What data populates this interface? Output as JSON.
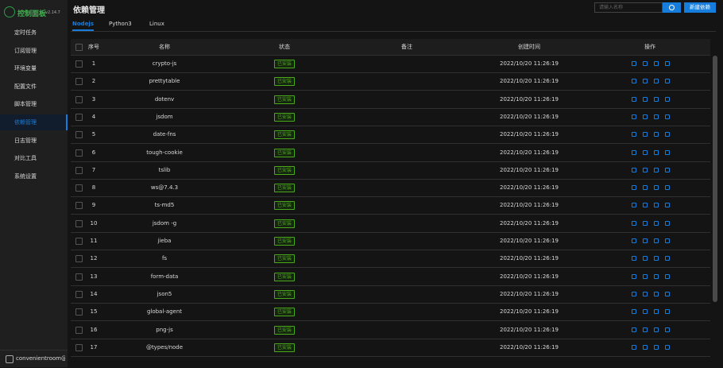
{
  "sidebar": {
    "logo": "控制面板",
    "version": "v2.14.7",
    "menu": [
      "定时任务",
      "订阅管理",
      "环境变量",
      "配置文件",
      "脚本管理",
      "依赖管理",
      "日志管理",
      "对比工具",
      "系统设置"
    ],
    "active": 5,
    "user": "convenientroom@c"
  },
  "header": {
    "title": "依赖管理",
    "search_placeholder": "请输入名称",
    "button": "新建依赖"
  },
  "tabs": {
    "items": [
      "Nodejs",
      "Python3",
      "Linux"
    ],
    "active": 0
  },
  "table": {
    "columns": [
      "序号",
      "名称",
      "状态",
      "备注",
      "创建时间",
      "操作"
    ],
    "rows": [
      {
        "no": "1",
        "name": "crypto-js",
        "status": "已安装",
        "time": "2022/10/20 11:26:19"
      },
      {
        "no": "2",
        "name": "prettytable",
        "status": "已安装",
        "time": "2022/10/20 11:26:19"
      },
      {
        "no": "3",
        "name": "dotenv",
        "status": "已安装",
        "time": "2022/10/20 11:26:19"
      },
      {
        "no": "4",
        "name": "jsdom",
        "status": "已安装",
        "time": "2022/10/20 11:26:19"
      },
      {
        "no": "5",
        "name": "date-fns",
        "status": "已安装",
        "time": "2022/10/20 11:26:19"
      },
      {
        "no": "6",
        "name": "tough-cookie",
        "status": "已安装",
        "time": "2022/10/20 11:26:19"
      },
      {
        "no": "7",
        "name": "tslib",
        "status": "已安装",
        "time": "2022/10/20 11:26:19"
      },
      {
        "no": "8",
        "name": "ws@7.4.3",
        "status": "已安装",
        "time": "2022/10/20 11:26:19"
      },
      {
        "no": "9",
        "name": "ts-md5",
        "status": "已安装",
        "time": "2022/10/20 11:26:19"
      },
      {
        "no": "10",
        "name": "jsdom -g",
        "status": "已安装",
        "time": "2022/10/20 11:26:19"
      },
      {
        "no": "11",
        "name": "jieba",
        "status": "已安装",
        "time": "2022/10/20 11:26:19"
      },
      {
        "no": "12",
        "name": "fs",
        "status": "已安装",
        "time": "2022/10/20 11:26:19"
      },
      {
        "no": "13",
        "name": "form-data",
        "status": "已安装",
        "time": "2022/10/20 11:26:19"
      },
      {
        "no": "14",
        "name": "json5",
        "status": "已安装",
        "time": "2022/10/20 11:26:19"
      },
      {
        "no": "15",
        "name": "global-agent",
        "status": "已安装",
        "time": "2022/10/20 11:26:19"
      },
      {
        "no": "16",
        "name": "png-js",
        "status": "已安装",
        "time": "2022/10/20 11:26:19"
      },
      {
        "no": "17",
        "name": "@types/node",
        "status": "已安装",
        "time": "2022/10/20 11:26:19"
      }
    ]
  }
}
